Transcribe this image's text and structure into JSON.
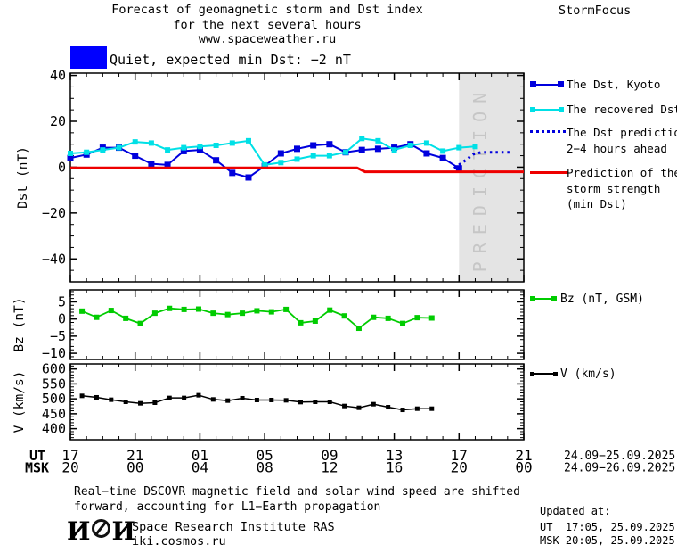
{
  "header": {
    "title_line1": "Forecast of geomagnetic storm and Dst index",
    "title_line2": "for the next several hours",
    "title_line3": "www.spaceweather.ru",
    "brand": "StormFocus"
  },
  "status_legend": {
    "label": "Quiet, expected min Dst: −2 nT"
  },
  "side_legend": {
    "dst_kyoto": "The Dst, Kyoto",
    "recovered": "The recovered Dst",
    "prediction_line1": "The Dst prediction",
    "prediction_line2": "2−4 hours ahead",
    "storm_line1": "Prediction of the",
    "storm_line2": "storm strength",
    "storm_line3": "(min Dst)",
    "bz": "Bz (nT, GSM)",
    "v": "V (km/s)"
  },
  "footer": {
    "note_line1": "Real−time DSCOVR magnetic field and solar wind speed are shifted",
    "note_line2": "forward, accounting for L1−Earth propagation",
    "logo_left": "И",
    "logo_right": "И",
    "institute": "Space Research Institute RAS",
    "site": "iki.cosmos.ru",
    "updated_label": "Updated at:",
    "updated_ut": "UT  17:05, 25.09.2025",
    "updated_msk": "MSK 20:05, 25.09.2025"
  },
  "colors": {
    "kyoto": "#0000dd",
    "recovered": "#00e0e6",
    "prediction": "#0000dd",
    "storm": "#ee0000",
    "bz": "#00cc00",
    "v": "#000000",
    "band": "#e4e4e4",
    "band_text": "#c6c6c6"
  },
  "chart_data": {
    "type": "line",
    "title": "Forecast of geomagnetic storm and Dst index",
    "x_unit": "hours since 17:00 UT 24.09.2025",
    "xlim": [
      0,
      28
    ],
    "xticks_hours": [
      0,
      4,
      8,
      12,
      16,
      20,
      24,
      28
    ],
    "grid": false,
    "prediction_band_hours": [
      24,
      28
    ],
    "prediction_band_label": "PREDICTION",
    "xaxis": {
      "ut_label": "UT",
      "msk_label": "MSK",
      "ut_ticks": [
        "17",
        "21",
        "01",
        "05",
        "09",
        "13",
        "17",
        "21"
      ],
      "msk_ticks": [
        "20",
        "00",
        "04",
        "08",
        "12",
        "16",
        "20",
        "00"
      ],
      "ut_dates": "24.09−25.09.2025",
      "msk_dates": "24.09−26.09.2025"
    },
    "panels": [
      {
        "id": "dst",
        "ylabel": "Dst (nT)",
        "ylim": [
          -50,
          41
        ],
        "yticks": [
          40,
          20,
          0,
          -20,
          -40
        ],
        "series": [
          {
            "name": "The Dst, Kyoto",
            "color_key": "kyoto",
            "marker": 7,
            "width": 2,
            "x0": 0,
            "dx": 1,
            "values": [
              4,
              5.5,
              8.5,
              8.5,
              5,
              1.5,
              1,
              7,
              7.5,
              3,
              -2.5,
              -4.5,
              0.5,
              6,
              8,
              9.5,
              10,
              6.5,
              7.5,
              8,
              8.5,
              10,
              6,
              4,
              -0.5
            ]
          },
          {
            "name": "The recovered Dst",
            "color_key": "recovered",
            "marker": 6,
            "width": 2,
            "x0": 0,
            "dx": 1,
            "values": [
              6,
              6.5,
              7.5,
              8.5,
              11,
              10.5,
              7.5,
              8.5,
              9,
              9.5,
              10.5,
              11.5,
              1,
              2,
              3.5,
              5,
              5,
              6.5,
              12.5,
              11.5,
              7.5,
              9.5,
              10.5,
              7,
              8.5,
              9
            ]
          },
          {
            "name": "The Dst prediction 2-4 hours ahead",
            "color_key": "prediction",
            "style": "dotted",
            "width": 3,
            "points": [
              [
                23.7,
                -0.5
              ],
              [
                24.4,
                3
              ],
              [
                24.9,
                5.7
              ],
              [
                25.4,
                6.5
              ],
              [
                27.2,
                6.5
              ]
            ]
          },
          {
            "name": "Prediction of the storm strength (min Dst)",
            "color_key": "storm",
            "width": 3,
            "points": [
              [
                0,
                -0.3
              ],
              [
                17.7,
                -0.3
              ],
              [
                18.2,
                -2
              ],
              [
                28,
                -2
              ]
            ]
          }
        ]
      },
      {
        "id": "bz",
        "ylabel": "Bz (nT)",
        "ylim": [
          -11.8,
          8.5
        ],
        "yticks": [
          5,
          0,
          -5,
          -10
        ],
        "series": [
          {
            "name": "Bz (nT, GSM)",
            "color_key": "bz",
            "marker": 6,
            "width": 1.8,
            "x0": 0.72,
            "dx": 0.9,
            "values": [
              2.3,
              0.5,
              2.5,
              0.2,
              -1.3,
              1.7,
              3.1,
              2.8,
              2.9,
              1.7,
              1.3,
              1.7,
              2.4,
              2.1,
              2.8,
              -1.1,
              -0.6,
              2.6,
              0.9,
              -2.7,
              0.5,
              0.2,
              -1.3,
              0.4,
              0.3
            ]
          }
        ]
      },
      {
        "id": "v",
        "ylabel": "V (km/s)",
        "ylim": [
          363,
          617
        ],
        "yticks": [
          600,
          550,
          500,
          450,
          400
        ],
        "series": [
          {
            "name": "V (km/s)",
            "color_key": "v",
            "marker": 5,
            "width": 1.5,
            "x0": 0.72,
            "dx": 0.9,
            "values": [
              510,
              505,
              497,
              490,
              485,
              487,
              503,
              503,
              512,
              498,
              494,
              502,
              496,
              496,
              495,
              489,
              490,
              490,
              476,
              470,
              482,
              472,
              463,
              467,
              467
            ]
          }
        ]
      }
    ]
  }
}
